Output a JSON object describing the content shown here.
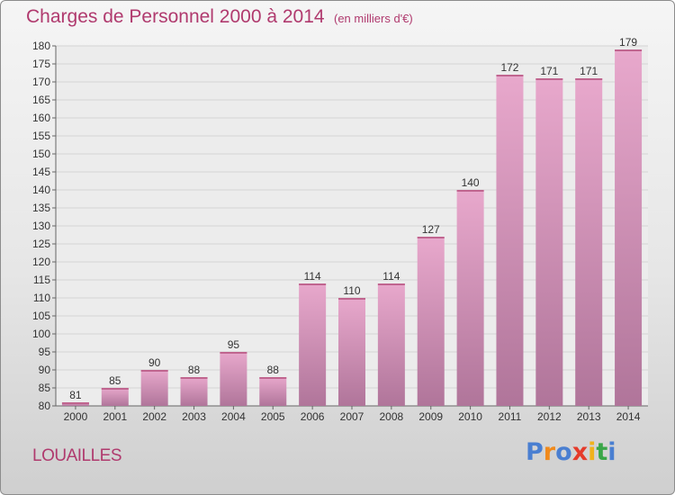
{
  "header": {
    "title": "Charges de Personnel 2000 à 2014",
    "subtitle": "(en milliers d'€)"
  },
  "footer": {
    "commune": "LOUAILLES",
    "logo_text": "Proxiti",
    "logo_colors": [
      "#4a7fd1",
      "#f08a1c",
      "#4a7fd1",
      "#e53b2b",
      "#f0b21c",
      "#3aa648",
      "#4a7fd1"
    ]
  },
  "colors": {
    "accent": "#b03a6e",
    "bar_light": "#e8a8cc",
    "bar_dark": "#b0759a"
  },
  "chart_data": {
    "type": "bar",
    "categories": [
      "2000",
      "2001",
      "2002",
      "2003",
      "2004",
      "2005",
      "2006",
      "2007",
      "2008",
      "2009",
      "2010",
      "2011",
      "2012",
      "2013",
      "2014"
    ],
    "values": [
      81,
      85,
      90,
      88,
      95,
      88,
      114,
      110,
      114,
      127,
      140,
      172,
      171,
      171,
      179
    ],
    "ylim": [
      80,
      180
    ],
    "ytick_step": 5,
    "grid": "horizontal",
    "value_labels": true
  }
}
